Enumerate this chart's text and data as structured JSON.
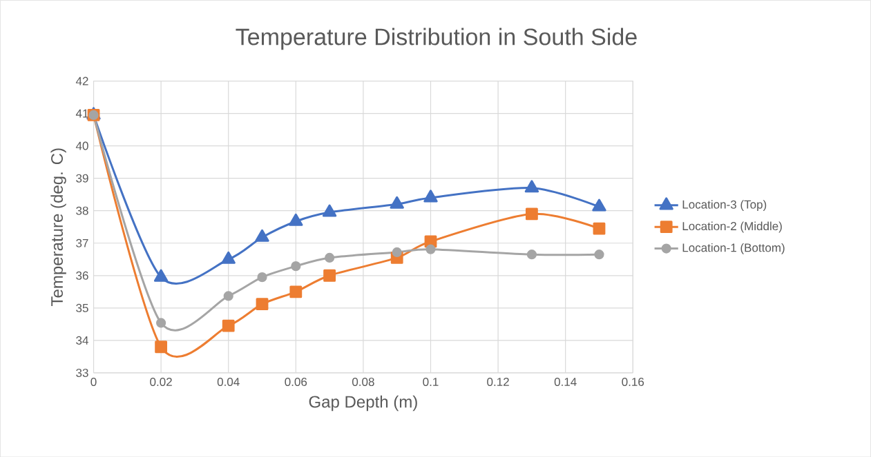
{
  "chart_data": {
    "type": "line",
    "title": "Temperature Distribution in South Side",
    "xlabel": "Gap Depth (m)",
    "ylabel": "Temperature (deg. C)",
    "x": [
      0,
      0.02,
      0.04,
      0.05,
      0.06,
      0.07,
      0.09,
      0.1,
      0.13,
      0.15
    ],
    "series": [
      {
        "name": "Location-3 (Top)",
        "color": "#4472c4",
        "marker": "triangle",
        "values": [
          40.95,
          35.95,
          36.5,
          37.18,
          37.67,
          37.95,
          38.2,
          38.4,
          38.7,
          38.12
        ]
      },
      {
        "name": "Location-2 (Middle)",
        "color": "#ed7d31",
        "marker": "square",
        "values": [
          40.95,
          33.8,
          34.45,
          35.12,
          35.5,
          36.0,
          36.55,
          37.05,
          37.9,
          37.45
        ]
      },
      {
        "name": "Location-1 (Bottom)",
        "color": "#a5a5a5",
        "marker": "circle",
        "values": [
          40.95,
          34.54,
          35.37,
          35.95,
          36.29,
          36.55,
          36.72,
          36.81,
          36.65,
          36.65
        ]
      }
    ],
    "xlim": [
      0,
      0.16
    ],
    "xticks": [
      0,
      0.02,
      0.04,
      0.06,
      0.08,
      0.1,
      0.12,
      0.14,
      0.16
    ],
    "ylim": [
      33,
      42
    ],
    "yticks": [
      33,
      34,
      35,
      36,
      37,
      38,
      39,
      40,
      41,
      42
    ],
    "grid": true,
    "legend": "right",
    "line_style": "solid"
  }
}
